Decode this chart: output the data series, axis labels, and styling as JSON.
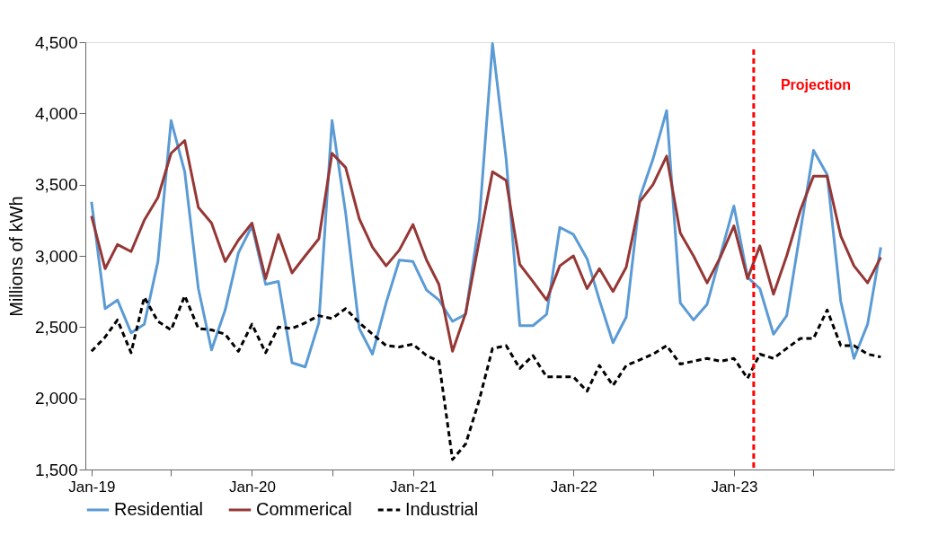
{
  "chart_data": {
    "type": "line",
    "ylabel": "Millions of kWh",
    "x": [
      "2019-01",
      "2019-02",
      "2019-03",
      "2019-04",
      "2019-05",
      "2019-06",
      "2019-07",
      "2019-08",
      "2019-09",
      "2019-10",
      "2019-11",
      "2019-12",
      "2020-01",
      "2020-02",
      "2020-03",
      "2020-04",
      "2020-05",
      "2020-06",
      "2020-07",
      "2020-08",
      "2020-09",
      "2020-10",
      "2020-11",
      "2020-12",
      "2021-01",
      "2021-02",
      "2021-03",
      "2021-04",
      "2021-05",
      "2021-06",
      "2021-07",
      "2021-08",
      "2021-09",
      "2021-10",
      "2021-11",
      "2021-12",
      "2022-01",
      "2022-02",
      "2022-03",
      "2022-04",
      "2022-05",
      "2022-06",
      "2022-07",
      "2022-08",
      "2022-09",
      "2022-10",
      "2022-11",
      "2022-12",
      "2023-01",
      "2023-02",
      "2023-03",
      "2023-04",
      "2023-05",
      "2023-06",
      "2023-07",
      "2023-08",
      "2023-09",
      "2023-10",
      "2023-11",
      "2023-12"
    ],
    "series": [
      {
        "name": "Residential",
        "color": "#5b9bd5",
        "line_style": "solid",
        "values": [
          3380,
          2630,
          2690,
          2460,
          2520,
          2960,
          3950,
          3590,
          2770,
          2340,
          2620,
          3020,
          3210,
          2800,
          2820,
          2250,
          2220,
          2530,
          3950,
          3300,
          2490,
          2310,
          2670,
          2970,
          2960,
          2760,
          2690,
          2540,
          2590,
          3250,
          4490,
          3680,
          2510,
          2510,
          2590,
          3200,
          3150,
          2980,
          2690,
          2390,
          2570,
          3410,
          3680,
          4020,
          2670,
          2550,
          2660,
          3000,
          3350,
          2850,
          2770,
          2450,
          2580,
          3170,
          3740,
          3570,
          2680,
          2280,
          2520,
          3060
        ]
      },
      {
        "name": "Commerical",
        "color": "#953735",
        "line_style": "solid",
        "values": [
          3280,
          2910,
          3080,
          3030,
          3250,
          3410,
          3720,
          3810,
          3340,
          3230,
          2960,
          3110,
          3230,
          2840,
          3150,
          2880,
          3000,
          3120,
          3720,
          3620,
          3260,
          3060,
          2930,
          3040,
          3220,
          2970,
          2800,
          2330,
          2600,
          3110,
          3590,
          3530,
          2940,
          2820,
          2690,
          2930,
          3000,
          2770,
          2910,
          2750,
          2920,
          3380,
          3500,
          3700,
          3160,
          3000,
          2810,
          2990,
          3210,
          2840,
          3070,
          2730,
          3000,
          3320,
          3560,
          3560,
          3140,
          2930,
          2810,
          2990
        ]
      },
      {
        "name": "Industrial",
        "color": "#000000",
        "line_style": "dashed",
        "values": [
          2330,
          2430,
          2550,
          2320,
          2710,
          2540,
          2480,
          2720,
          2490,
          2480,
          2450,
          2330,
          2520,
          2320,
          2500,
          2490,
          2530,
          2580,
          2560,
          2630,
          2530,
          2450,
          2370,
          2360,
          2380,
          2300,
          2260,
          1570,
          1680,
          1990,
          2350,
          2370,
          2210,
          2300,
          2150,
          2150,
          2150,
          2050,
          2230,
          2090,
          2230,
          2270,
          2310,
          2370,
          2240,
          2260,
          2280,
          2260,
          2280,
          2140,
          2310,
          2280,
          2350,
          2420,
          2420,
          2620,
          2370,
          2370,
          2310,
          2290
        ]
      }
    ],
    "xlim": [
      "2018-12-18",
      "2023-12-31"
    ],
    "xticks": [
      {
        "value": "2019-01",
        "label": "Jan-19"
      },
      {
        "value": "2019-07",
        "label": null
      },
      {
        "value": "2020-01",
        "label": "Jan-20"
      },
      {
        "value": "2020-07",
        "label": null
      },
      {
        "value": "2021-01",
        "label": "Jan-21"
      },
      {
        "value": "2021-07",
        "label": null
      },
      {
        "value": "2022-01",
        "label": "Jan-22"
      },
      {
        "value": "2022-07",
        "label": null
      },
      {
        "value": "2023-01",
        "label": "Jan-23"
      },
      {
        "value": "2023-07",
        "label": null
      }
    ],
    "ylim": [
      1500,
      4500
    ],
    "yticks": [
      {
        "value": 1500,
        "label": "1,500"
      },
      {
        "value": 2000,
        "label": "2,000"
      },
      {
        "value": 2500,
        "label": "2,500"
      },
      {
        "value": 3000,
        "label": "3,000"
      },
      {
        "value": 3500,
        "label": "3,500"
      },
      {
        "value": 4000,
        "label": "4,000"
      },
      {
        "value": 4500,
        "label": "4,500"
      }
    ],
    "ref_lines": [
      {
        "axis": "x",
        "value": "2023-02-15",
        "label": "Projection",
        "color": "#ff0000",
        "line_style": "dashed"
      }
    ],
    "grid": false,
    "legend": "bottom",
    "marker": "none"
  }
}
